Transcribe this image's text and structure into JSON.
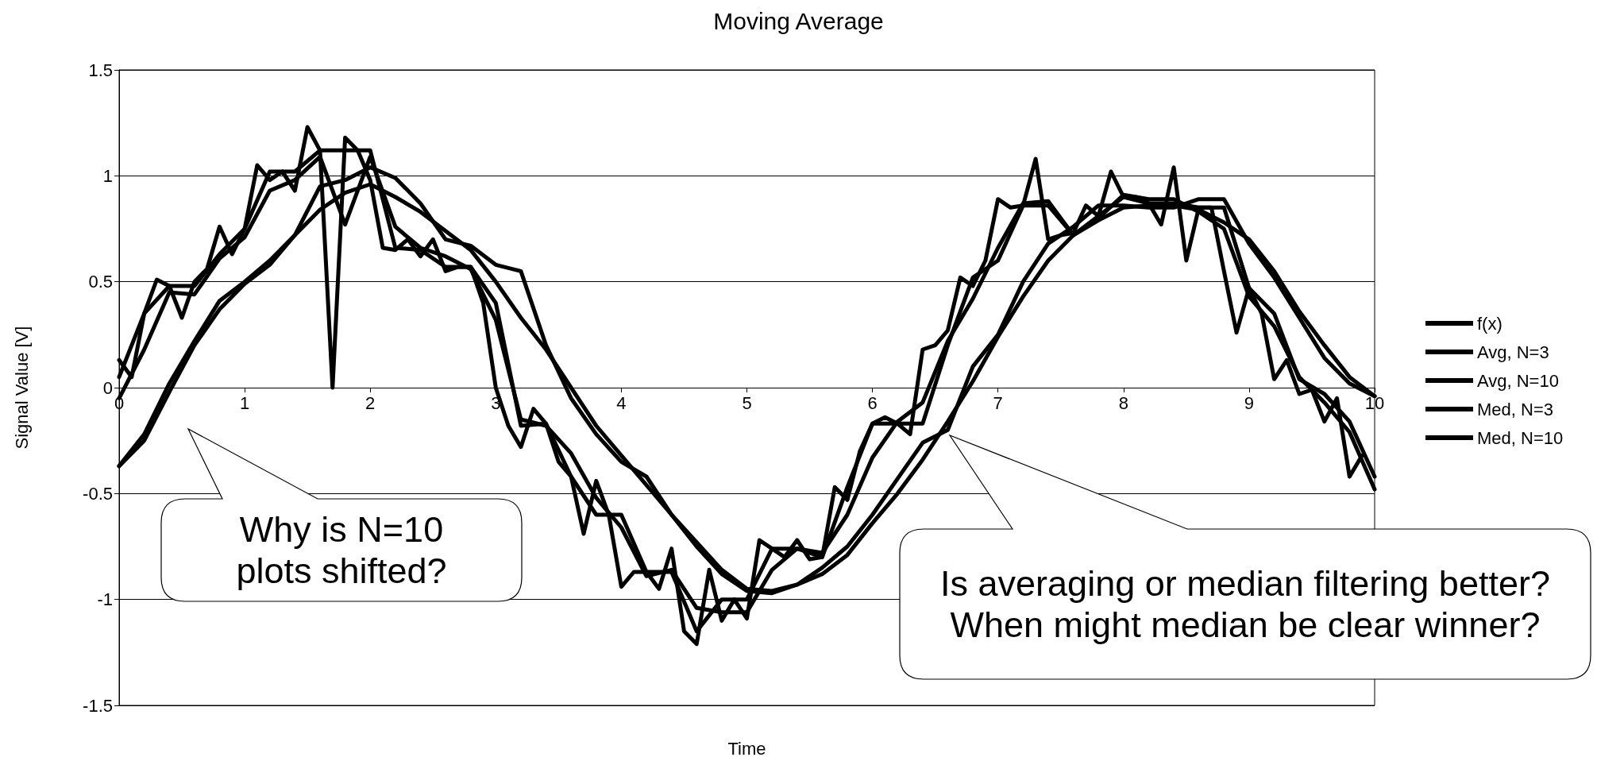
{
  "chart_data": {
    "type": "line",
    "title": "Moving Average",
    "xlabel": "Time",
    "ylabel": "Signal Value [V]",
    "x": [
      0,
      0.2,
      0.4,
      0.6,
      0.8,
      1,
      1.2,
      1.4,
      1.6,
      1.8,
      2,
      2.2,
      2.4,
      2.6,
      2.8,
      3,
      3.2,
      3.4,
      3.6,
      3.8,
      4,
      4.2,
      4.4,
      4.6,
      4.8,
      5,
      5.2,
      5.4,
      5.6,
      5.8,
      6,
      6.2,
      6.4,
      6.6,
      6.8,
      7,
      7.2,
      7.4,
      7.6,
      7.8,
      8,
      8.2,
      8.4,
      8.6,
      8.8,
      9,
      9.2,
      9.4,
      9.6,
      9.8,
      10
    ],
    "series": [
      {
        "name": "f(x)",
        "color": "#000000",
        "x": [
          0,
          0.1,
          0.2,
          0.3,
          0.4,
          0.5,
          0.6,
          0.7,
          0.8,
          0.9,
          1,
          1.1,
          1.2,
          1.3,
          1.4,
          1.5,
          1.6,
          1.7,
          1.8,
          1.9,
          2,
          2.1,
          2.2,
          2.3,
          2.4,
          2.5,
          2.6,
          2.7,
          2.8,
          2.9,
          3,
          3.1,
          3.2,
          3.3,
          3.4,
          3.5,
          3.6,
          3.7,
          3.8,
          3.9,
          4,
          4.1,
          4.2,
          4.3,
          4.4,
          4.5,
          4.6,
          4.7,
          4.8,
          4.9,
          5,
          5.1,
          5.2,
          5.3,
          5.4,
          5.5,
          5.6,
          5.7,
          5.8,
          5.9,
          6,
          6.1,
          6.2,
          6.3,
          6.4,
          6.5,
          6.6,
          6.7,
          6.8,
          6.9,
          7,
          7.1,
          7.2,
          7.3,
          7.4,
          7.5,
          7.6,
          7.7,
          7.8,
          7.9,
          8,
          8.1,
          8.2,
          8.3,
          8.4,
          8.5,
          8.6,
          8.7,
          8.8,
          8.9,
          9,
          9.1,
          9.2,
          9.3,
          9.4,
          9.5,
          9.6,
          9.7,
          9.8,
          9.9
        ],
        "values": [
          0.13,
          0.05,
          0.35,
          0.51,
          0.48,
          0.33,
          0.5,
          0.56,
          0.76,
          0.63,
          0.75,
          1.05,
          0.98,
          1.02,
          0.93,
          1.23,
          1.12,
          0,
          1.18,
          1.12,
          0.98,
          0.66,
          0.65,
          0.7,
          0.62,
          0.7,
          0.55,
          0.57,
          0.57,
          0.4,
          0,
          -0.18,
          -0.28,
          -0.1,
          -0.17,
          -0.35,
          -0.42,
          -0.69,
          -0.44,
          -0.6,
          -0.94,
          -0.87,
          -0.87,
          -0.95,
          -0.76,
          -1.15,
          -1.21,
          -0.86,
          -1.1,
          -1,
          -1.09,
          -0.72,
          -0.76,
          -0.8,
          -0.72,
          -0.81,
          -0.8,
          -0.47,
          -0.53,
          -0.3,
          -0.17,
          -0.14,
          -0.17,
          -0.22,
          0.18,
          0.2,
          0.27,
          0.52,
          0.48,
          0.6,
          0.89,
          0.85,
          0.86,
          1.08,
          0.7,
          0.72,
          0.73,
          0.86,
          0.81,
          1.02,
          0.9,
          0.9,
          0.87,
          0.77,
          1.04,
          0.6,
          0.85,
          0.85,
          0.55,
          0.26,
          0.47,
          0.35,
          0.04,
          0.13,
          -0.03,
          -0.01,
          -0.16,
          -0.05,
          -0.42,
          -0.32
        ]
      },
      {
        "name": "Avg, N=3",
        "color": "#000000",
        "values": [
          -0.05,
          0.18,
          0.45,
          0.44,
          0.61,
          0.71,
          0.93,
          0.98,
          1.09,
          0.77,
          1.09,
          0.76,
          0.66,
          0.62,
          0.56,
          0.32,
          -0.15,
          -0.18,
          -0.31,
          -0.52,
          -0.66,
          -0.89,
          -0.86,
          -1.04,
          -1.06,
          -1.06,
          -0.86,
          -0.76,
          -0.78,
          -0.6,
          -0.33,
          -0.16,
          -0.07,
          0.22,
          0.42,
          0.66,
          0.87,
          0.88,
          0.72,
          0.8,
          0.91,
          0.89,
          0.89,
          0.83,
          0.75,
          0.43,
          0.29,
          0.05,
          -0.07,
          -0.21,
          -0.48
        ]
      },
      {
        "name": "Avg, N=10",
        "color": "#000000",
        "values": [
          -0.37,
          -0.25,
          -0.02,
          0.2,
          0.37,
          0.49,
          0.58,
          0.72,
          0.84,
          0.92,
          0.96,
          0.9,
          0.83,
          0.74,
          0.65,
          0.5,
          0.33,
          0.18,
          0,
          -0.18,
          -0.32,
          -0.46,
          -0.6,
          -0.73,
          -0.86,
          -0.95,
          -0.96,
          -0.93,
          -0.88,
          -0.79,
          -0.64,
          -0.5,
          -0.34,
          -0.16,
          0.03,
          0.24,
          0.43,
          0.6,
          0.72,
          0.79,
          0.85,
          0.86,
          0.86,
          0.84,
          0.78,
          0.7,
          0.55,
          0.36,
          0.2,
          0.05,
          -0.04
        ]
      },
      {
        "name": "Med, N=3",
        "color": "#000000",
        "values": [
          0.05,
          0.35,
          0.48,
          0.48,
          0.63,
          0.75,
          1.02,
          1.02,
          1.12,
          1.12,
          1.12,
          0.66,
          0.65,
          0.57,
          0.57,
          0.4,
          -0.18,
          -0.17,
          -0.42,
          -0.6,
          -0.6,
          -0.87,
          -0.87,
          -1.15,
          -1,
          -1,
          -0.76,
          -0.76,
          -0.8,
          -0.47,
          -0.17,
          -0.17,
          -0.17,
          0.2,
          0.52,
          0.6,
          0.86,
          0.86,
          0.72,
          0.81,
          0.9,
          0.87,
          0.87,
          0.85,
          0.85,
          0.47,
          0.35,
          0.04,
          -0.03,
          -0.16,
          -0.42
        ]
      },
      {
        "name": "Med, N=10",
        "color": "#000000",
        "values": [
          -0.37,
          -0.22,
          0.02,
          0.22,
          0.41,
          0.5,
          0.6,
          0.72,
          0.95,
          0.98,
          1.04,
          0.99,
          0.87,
          0.7,
          0.67,
          0.58,
          0.55,
          0.2,
          -0.05,
          -0.22,
          -0.35,
          -0.42,
          -0.6,
          -0.75,
          -0.88,
          -0.96,
          -0.97,
          -0.93,
          -0.85,
          -0.75,
          -0.6,
          -0.43,
          -0.26,
          -0.2,
          0.1,
          0.25,
          0.5,
          0.68,
          0.76,
          0.86,
          0.86,
          0.85,
          0.85,
          0.89,
          0.89,
          0.68,
          0.52,
          0.33,
          0.14,
          0.02,
          -0.04
        ]
      }
    ],
    "xlim": [
      0,
      10
    ],
    "xticks": [
      0,
      1,
      2,
      3,
      4,
      5,
      6,
      7,
      8,
      9,
      10
    ],
    "ylim": [
      -1.5,
      1.5
    ],
    "yticks": [
      -1.5,
      -1,
      -0.5,
      0,
      0.5,
      1,
      1.5
    ],
    "grid": "y",
    "legend": "right",
    "marker": "none",
    "line_style": "solid",
    "annotations": [
      "Why is N=10 plots shifted?",
      "Is averaging or median filtering better? When might median be clear winner?"
    ]
  }
}
